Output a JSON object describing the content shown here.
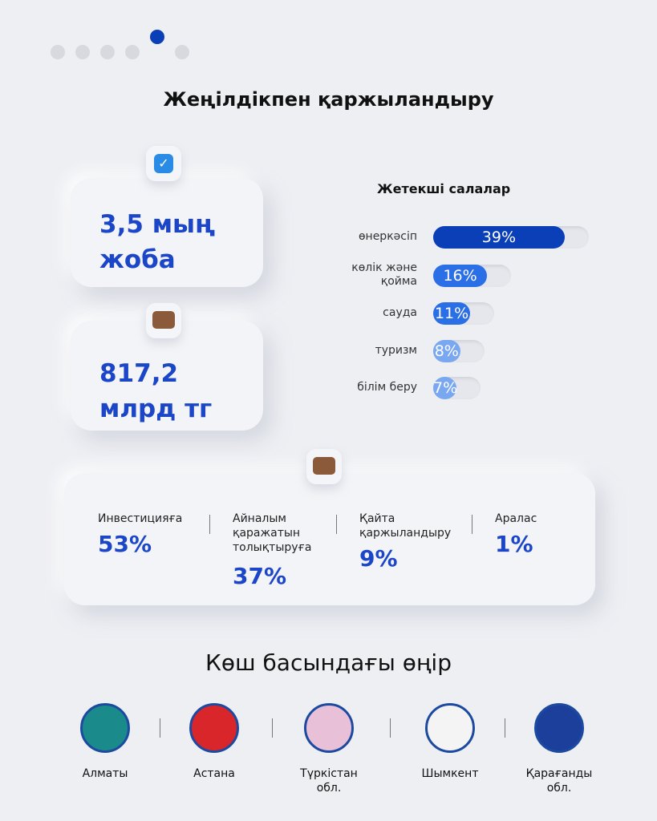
{
  "title": "Жеңілдікпен қаржыландыру",
  "stats": [
    {
      "lines": [
        "3,5 мың",
        "жоба"
      ]
    },
    {
      "lines": [
        "817,2",
        "млрд тг"
      ]
    }
  ],
  "chart_data": {
    "type": "bar",
    "title": "Жетекші салалар",
    "categories": [
      "өнеркәсіп",
      "көлік және қойма",
      "сауда",
      "туризм",
      "білім беру"
    ],
    "values": [
      39,
      16,
      11,
      8,
      7
    ],
    "value_labels": [
      "39%",
      "16%",
      "11%",
      "8%",
      "7%"
    ],
    "colors": [
      "#0a3fb8",
      "#2a6fe6",
      "#2a6fe6",
      "#79a8f0",
      "#79a8f0"
    ]
  },
  "shares": [
    {
      "label": "Инвестицияға",
      "value": "53%"
    },
    {
      "label": "Айналым қаражатын толықтыруға",
      "value": "37%"
    },
    {
      "label": "Қайта қаржыландыру",
      "value": "9%"
    },
    {
      "label": "Аралас",
      "value": "1%"
    }
  ],
  "regions_title": "Көш басындағы өңір",
  "regions": [
    "Алматы",
    "Астана",
    "Түркістан обл.",
    "Шымкент",
    "Қарағанды обл."
  ]
}
